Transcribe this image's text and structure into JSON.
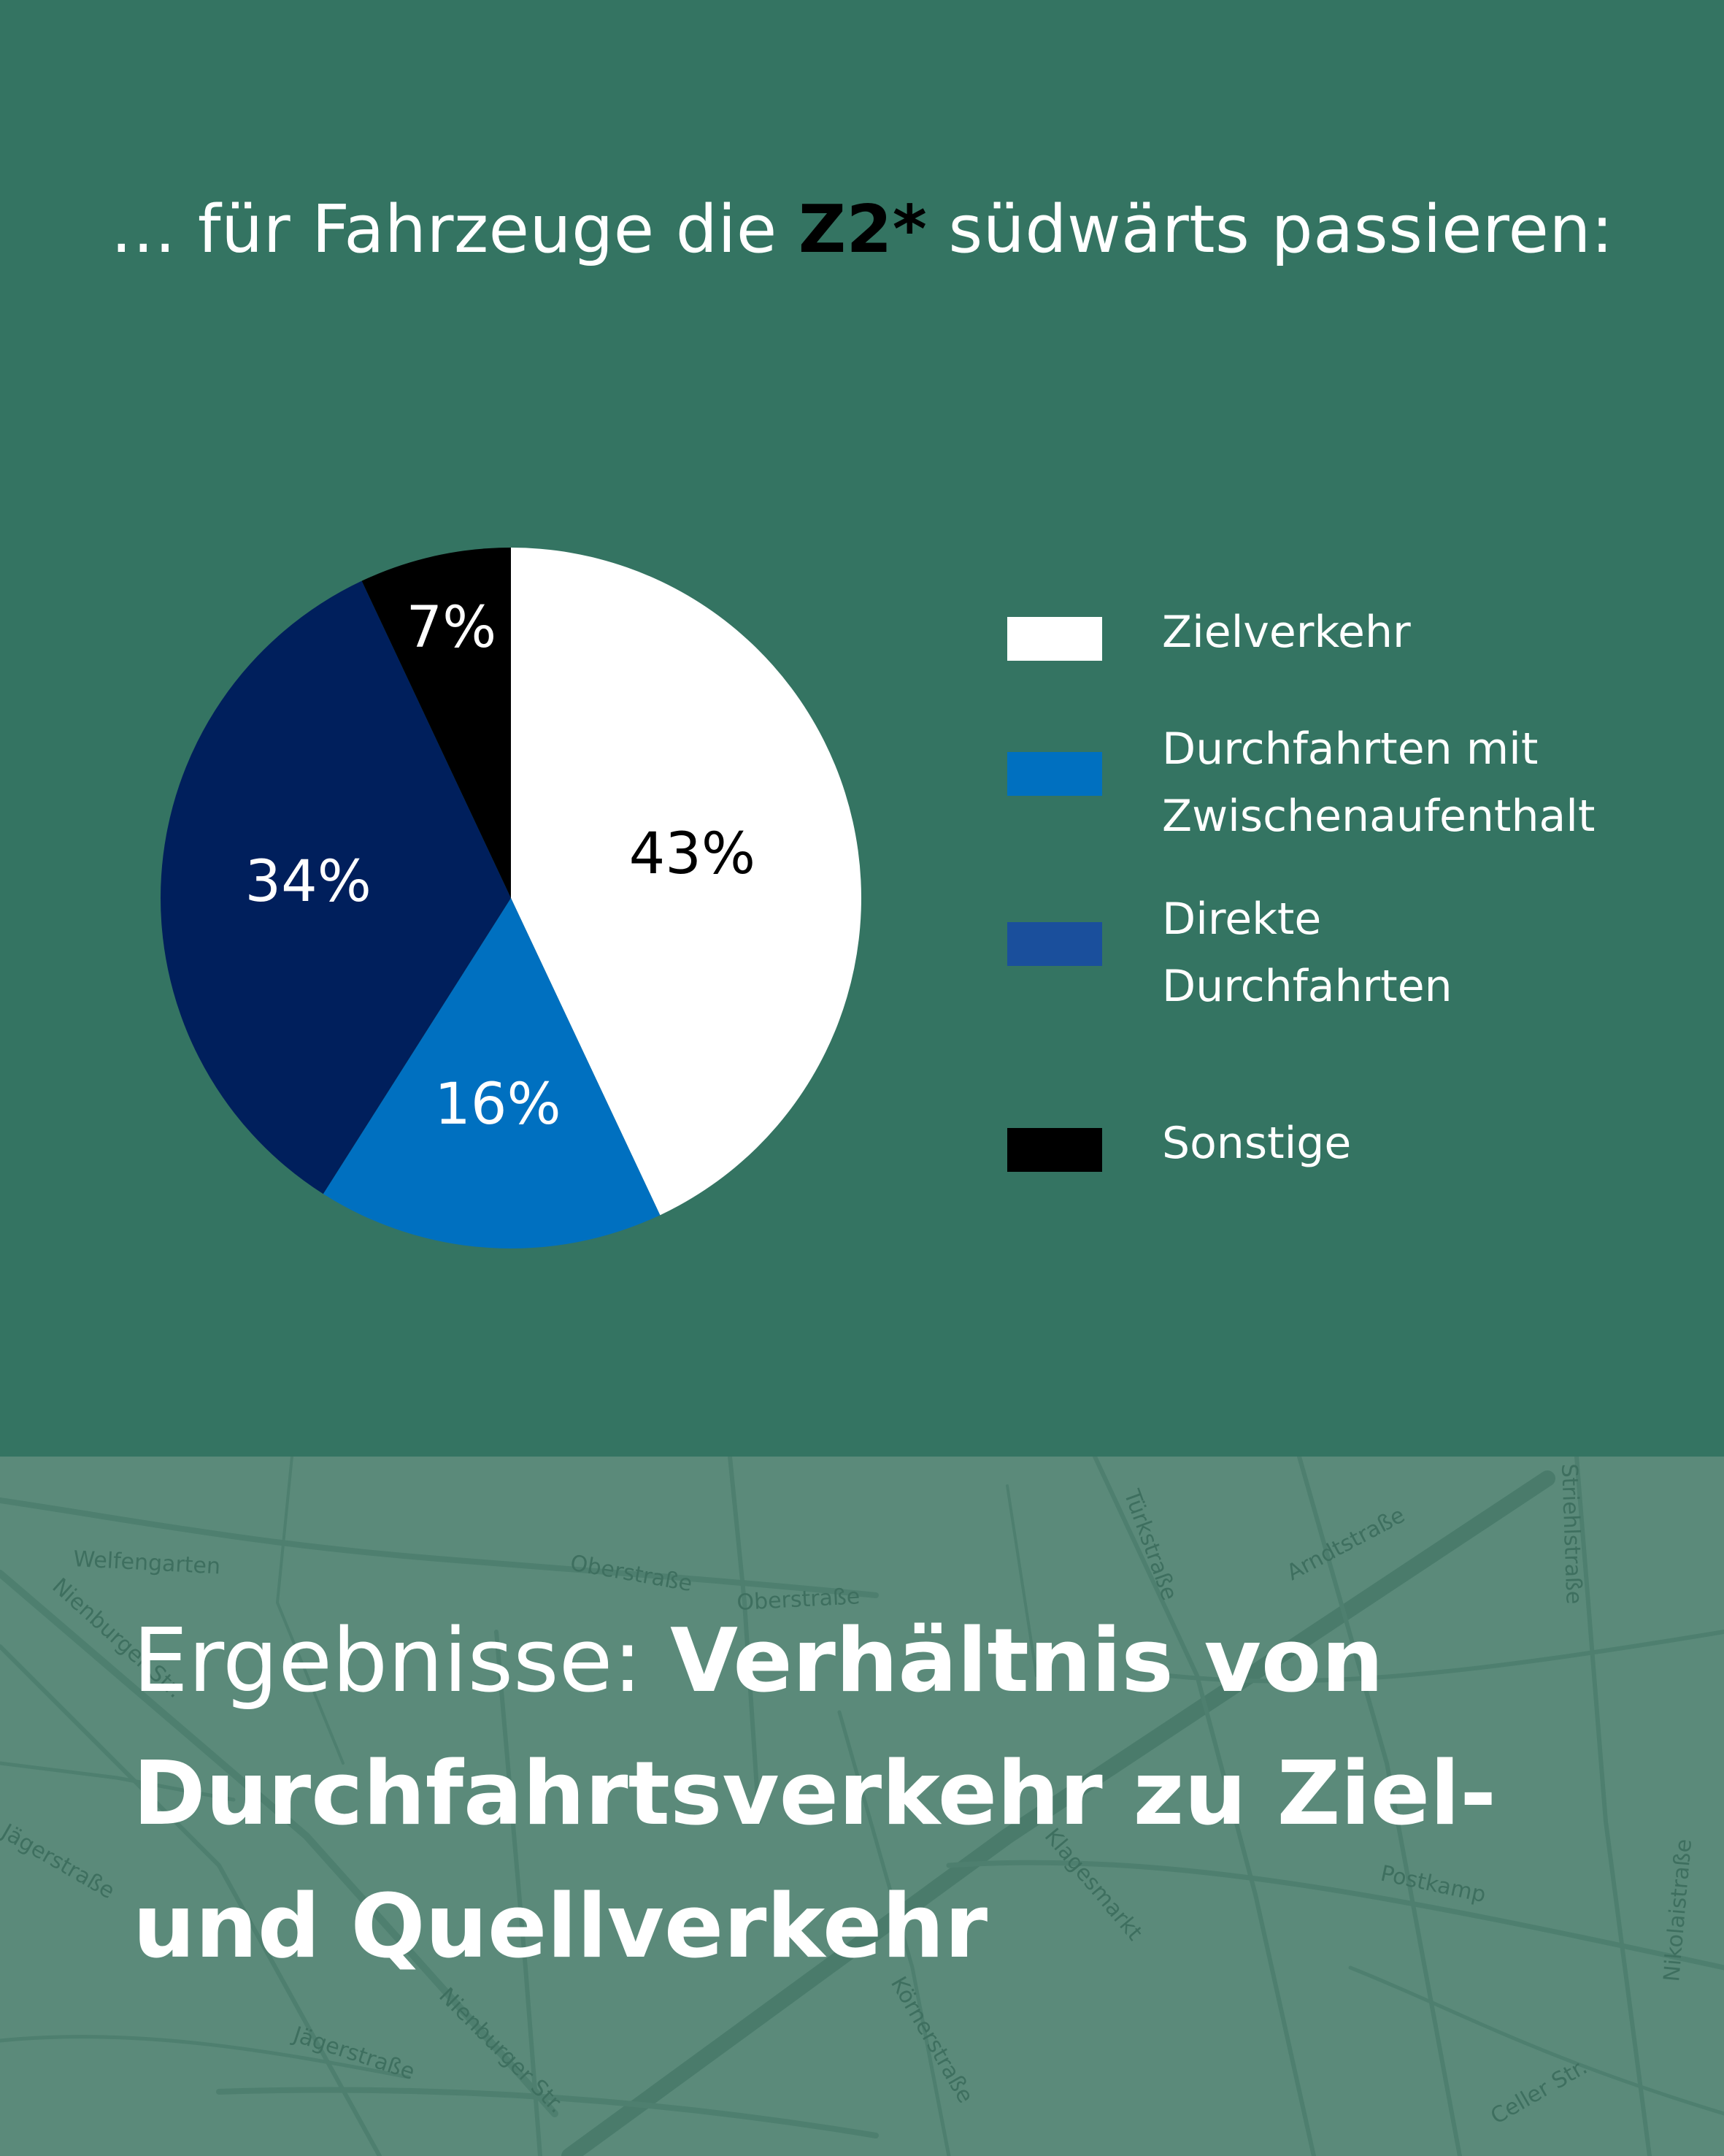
{
  "header": {
    "subtitle_prefix": "… für Fahrzeuge die ",
    "subtitle_highlight": "Z2*",
    "subtitle_suffix": " südwärts passieren:"
  },
  "chart_data": {
    "type": "pie",
    "slices": [
      {
        "label": "Zielverkehr",
        "value": 43,
        "value_label": "43%",
        "color": "#ffffff",
        "text_color": "#000000"
      },
      {
        "label": "Durchfahrten mit\nZwischenaufenthalt",
        "value": 16,
        "value_label": "16%",
        "color": "#0070c0",
        "text_color": "#ffffff"
      },
      {
        "label": "Direkte\nDurchfahrten",
        "value": 34,
        "value_label": "34%",
        "color": "#001f5c",
        "text_color": "#ffffff"
      },
      {
        "label": "Sonstige",
        "value": 7,
        "value_label": "7%",
        "color": "#000000",
        "text_color": "#ffffff"
      }
    ],
    "legend": {
      "placement": "right",
      "entries": [
        {
          "label": "Zielverkehr",
          "color": "#ffffff"
        },
        {
          "label": "Durchfahrten mit\nZwischenaufenthalt",
          "color": "#0070c0"
        },
        {
          "label": "Direkte\nDurchfahrten",
          "color": "#1a4f9c"
        },
        {
          "label": "Sonstige",
          "color": "#000000"
        }
      ]
    }
  },
  "footer": {
    "heading_light": "Ergebnisse: ",
    "heading_bold": "Verhältnis von Durchfahrtsverkehr zu Ziel- und Quellverkehr",
    "map_labels": [
      "Welfengarten",
      "Oberstraße",
      "Oberstraße",
      "Türkstraße",
      "Arndtstraße",
      "Striehlstraße",
      "Nienburger Str.",
      "Jägerstraße",
      "Jägerstraße",
      "Klagesmarkt",
      "Postkamp",
      "Körnerstraße",
      "Nikolaistraße",
      "Celler Str.",
      "Nienburger Str."
    ]
  }
}
